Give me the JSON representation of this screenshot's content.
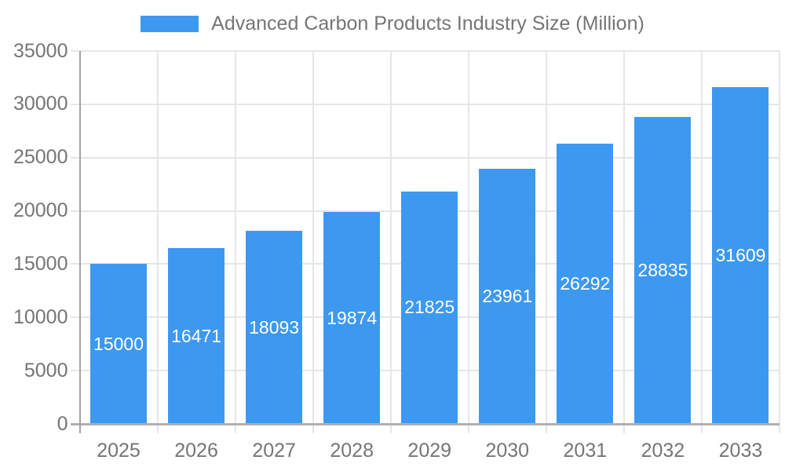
{
  "chart_data": {
    "type": "bar",
    "title": "Advanced Carbon Products Industry Size (Million)",
    "categories": [
      "2025",
      "2026",
      "2027",
      "2028",
      "2029",
      "2030",
      "2031",
      "2032",
      "2033"
    ],
    "series": [
      {
        "name": "Advanced Carbon Products Industry Size (Million)",
        "values": [
          15000,
          16471,
          18093,
          19874,
          21825,
          23961,
          26292,
          28835,
          31609
        ]
      }
    ],
    "xlabel": "",
    "ylabel": "",
    "ylim": [
      0,
      35000
    ],
    "yticks": [
      0,
      5000,
      10000,
      15000,
      20000,
      25000,
      30000,
      35000
    ],
    "grid": true,
    "legend_position": "top",
    "value_labels_position": "inside-center"
  },
  "colors": {
    "bar": "#3d99f0",
    "text": "#757575",
    "gridline": "#e6e6e6",
    "x_axis_line": "#b0b0b0",
    "y_axis_line": "#a3a3a3",
    "bar_value_text": "#ffffff",
    "background": "#ffffff"
  }
}
